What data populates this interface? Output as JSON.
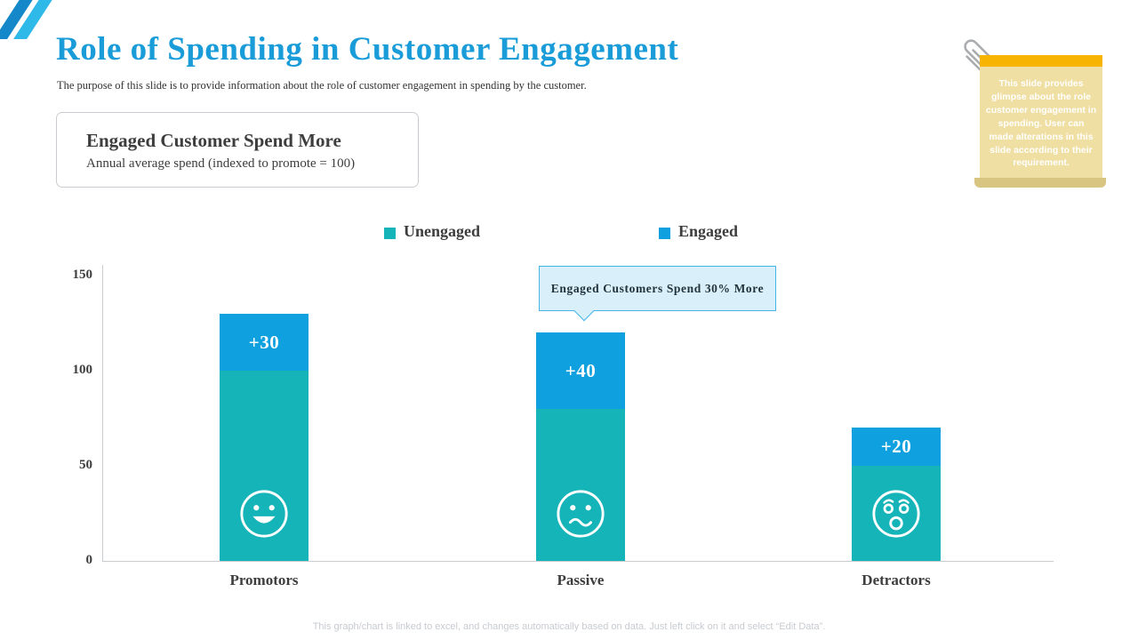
{
  "slide": {
    "title": "Role of Spending in Customer Engagement",
    "subtitle": "The purpose of this slide is to provide information about the role of customer engagement in spending by the customer.",
    "footer": "This graph/chart is linked to excel, and changes automatically based on data. Just left click on it and select “Edit Data”."
  },
  "info_box": {
    "heading": "Engaged Customer Spend More",
    "subheading": "Annual average spend (indexed to promote = 100)"
  },
  "sticky_note": {
    "text": "This slide provides glimpse about the role customer engagement in spending. User can made alterations in this slide according to their requirement."
  },
  "callout": {
    "text": "Engaged Customers Spend 30% More"
  },
  "legend": [
    {
      "label": "Unengaged",
      "color": "#15B4B8"
    },
    {
      "label": "Engaged",
      "color": "#0FA0E0"
    }
  ],
  "chart_data": {
    "type": "bar",
    "stacked": true,
    "title": "Engaged Customer Spend More",
    "subtitle": "Annual average spend (indexed to promote = 100)",
    "categories": [
      "Promotors",
      "Passive",
      "Detractors"
    ],
    "series": [
      {
        "name": "Unengaged",
        "color": "#15B4B8",
        "values": [
          100,
          80,
          50
        ]
      },
      {
        "name": "Engaged",
        "color": "#0FA0E0",
        "values": [
          30,
          40,
          20
        ]
      }
    ],
    "totals": [
      130,
      120,
      70
    ],
    "bar_labels": [
      "+30",
      "+40",
      "+20"
    ],
    "y_ticks": [
      0,
      50,
      100,
      150
    ],
    "ylim": [
      0,
      150
    ],
    "legend_position": "top",
    "faces": [
      "happy",
      "confused",
      "shocked"
    ],
    "annotation": "Engaged Customers Spend 30% More"
  },
  "colors": {
    "title": "#1A9CD9",
    "unengaged": "#15B4B8",
    "engaged": "#0FA0E0",
    "sticky_bg": "#F0DFA3",
    "sticky_bar": "#F7B501",
    "callout_bg": "#D9F0FA",
    "callout_border": "#45B5E8"
  }
}
